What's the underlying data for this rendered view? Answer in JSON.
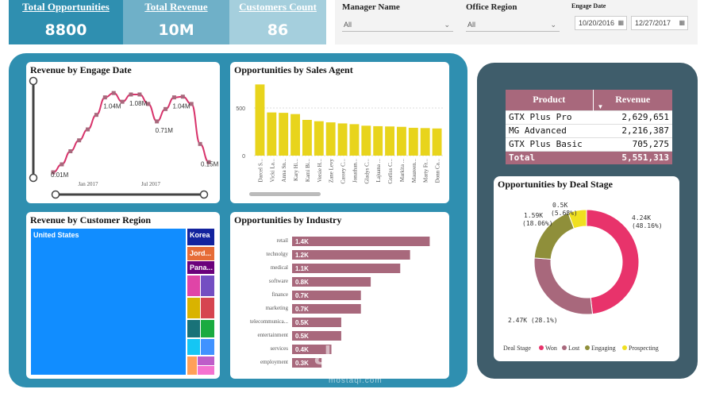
{
  "kpis": [
    {
      "title": "Total Opportunities",
      "value": "8800",
      "color": "#2f8fb0"
    },
    {
      "title": "Total Revenue",
      "value": "10M",
      "color": "#6fb0c8"
    },
    {
      "title": "Customers Count",
      "value": "86",
      "color": "#a5cfdd"
    }
  ],
  "filters": {
    "manager": {
      "label": "Manager Name",
      "value": "All"
    },
    "office": {
      "label": "Office Region",
      "value": "All"
    },
    "engage": {
      "label": "Engage Date",
      "start": "10/20/2016",
      "end": "12/27/2017"
    }
  },
  "engage_chart": {
    "title": "Revenue by Engage Date",
    "x_ticks": [
      "Jan 2017",
      "Jul 2017"
    ],
    "points": [
      0.01,
      0.12,
      0.3,
      0.45,
      0.6,
      0.8,
      1.04,
      1.1,
      0.98,
      1.08,
      1.08,
      0.95,
      0.71,
      0.88,
      1.04,
      1.05,
      0.95,
      0.4,
      0.15
    ],
    "labels": [
      {
        "i": 0,
        "text": "0.01M"
      },
      {
        "i": 6,
        "text": "1.04M"
      },
      {
        "i": 9,
        "text": "1.08M"
      },
      {
        "i": 12,
        "text": "0.71M"
      },
      {
        "i": 14,
        "text": "1.04M"
      },
      {
        "i": 18,
        "text": "0.15M"
      }
    ],
    "ymax": 1.2
  },
  "agent_chart": {
    "title": "Opportunities by Sales Agent",
    "y_ticks": [
      500,
      0
    ],
    "ymax": 800,
    "agents": [
      "Darcel S...",
      "Vicki La...",
      "Anna Sn...",
      "Kary Hi...",
      "Kami Bi...",
      "Versie H...",
      "Zane Levy",
      "Cassey C...",
      "Jonathan...",
      "Gladys C...",
      "Lajuana ...",
      "Corliss C...",
      "Markita ...",
      "Maureen...",
      "Marty Fr...",
      "Donn Ca..."
    ],
    "values": [
      747,
      453,
      449,
      436,
      375,
      361,
      349,
      338,
      330,
      314,
      309,
      306,
      302,
      292,
      289,
      285
    ],
    "color": "#e8d41c"
  },
  "region_chart": {
    "title": "Revenue by Customer Region",
    "tiles": [
      {
        "label": "United States",
        "color": "#118dff"
      },
      {
        "label": "Korea",
        "color": "#12239e"
      },
      {
        "label": "Jord...",
        "color": "#e66c37"
      },
      {
        "label": "Pana...",
        "color": "#6b007b"
      },
      {
        "label": "",
        "color": "#e044a7"
      },
      {
        "label": "",
        "color": "#744ec2"
      },
      {
        "label": "",
        "color": "#d9b300"
      },
      {
        "label": "",
        "color": "#d64550"
      },
      {
        "label": "",
        "color": "#197278"
      },
      {
        "label": "",
        "color": "#1aab40"
      },
      {
        "label": "",
        "color": "#15c6f4"
      },
      {
        "label": "",
        "color": "#4092ff"
      },
      {
        "label": "",
        "color": "#ffa058"
      },
      {
        "label": "",
        "color": "#be5dc9"
      },
      {
        "label": "",
        "color": "#f472d0"
      }
    ]
  },
  "industry_chart": {
    "title": "Opportunities by Industry",
    "categories": [
      "retail",
      "technolgy",
      "medical",
      "software",
      "finance",
      "marketing",
      "telecommunica...",
      "entertainment",
      "services",
      "employment"
    ],
    "values": [
      1.4,
      1.2,
      1.1,
      0.8,
      0.7,
      0.7,
      0.5,
      0.5,
      0.4,
      0.3
    ],
    "labels": [
      "1.4K",
      "1.2K",
      "1.1K",
      "0.8K",
      "0.7K",
      "0.7K",
      "0.5K",
      "0.5K",
      "0.4K",
      "0.3K"
    ],
    "xmax": 1.55,
    "color": "#a8687c"
  },
  "product_table": {
    "headers": [
      "Product",
      "Revenue"
    ],
    "rows": [
      {
        "product": "GTX Plus Pro",
        "revenue": "2,629,651"
      },
      {
        "product": "MG Advanced",
        "revenue": "2,216,387"
      },
      {
        "product": "GTX Plus Basic",
        "revenue": "705,275"
      }
    ],
    "total_label": "Total",
    "total_value": "5,551,313"
  },
  "deal_chart": {
    "title": "Opportunities by Deal Stage",
    "legend_title": "Deal Stage",
    "slices": [
      {
        "name": "Won",
        "value": 4.24,
        "label1": "4.24K",
        "label2": "(48.16%)",
        "color": "#e8336b"
      },
      {
        "name": "Lost",
        "value": 2.47,
        "label1": "2.47K (28.1%)",
        "label2": "",
        "color": "#a8687c"
      },
      {
        "name": "Engaging",
        "value": 1.59,
        "label1": "1.59K",
        "label2": "(18.06%)",
        "color": "#8f8f3a"
      },
      {
        "name": "Prospecting",
        "value": 0.5,
        "label1": "0.5K",
        "label2": "(5.68%)",
        "color": "#f0e020"
      }
    ]
  },
  "watermark": {
    "text": "مستقل",
    "sub": "mostaql.com"
  }
}
